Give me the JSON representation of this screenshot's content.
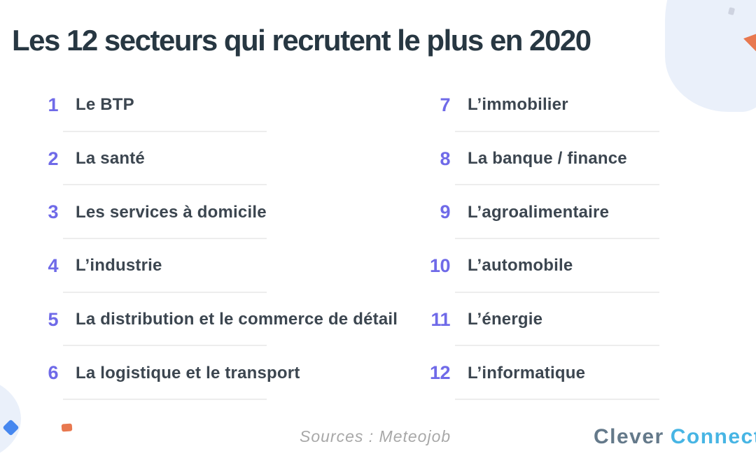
{
  "title": "Les 12 secteurs qui recrutent le plus en 2020",
  "columns": {
    "left": [
      {
        "num": "1",
        "label": "Le BTP"
      },
      {
        "num": "2",
        "label": "La santé"
      },
      {
        "num": "3",
        "label": "Les services à domicile"
      },
      {
        "num": "4",
        "label": "L’industrie"
      },
      {
        "num": "5",
        "label": "La distribution et le commerce de détail"
      },
      {
        "num": "6",
        "label": "La logistique et le transport"
      }
    ],
    "right": [
      {
        "num": "7",
        "label": "L’immobilier"
      },
      {
        "num": "8",
        "label": "La banque / finance"
      },
      {
        "num": "9",
        "label": "L’agroalimentaire"
      },
      {
        "num": "10",
        "label": "L’automobile"
      },
      {
        "num": "11",
        "label": "L’énergie"
      },
      {
        "num": "12",
        "label": "L’informatique"
      }
    ]
  },
  "footer": {
    "sources": "Sources : Meteojob",
    "logo_part1": "Clever",
    "logo_part2": "Connect"
  },
  "colors": {
    "title": "#273742",
    "number": "#6F6AE8",
    "label": "#3C4650",
    "divider": "#EDEDED",
    "sources": "#A8A8A8",
    "logo_gray": "#64798A",
    "logo_blue": "#47B5E4",
    "blob": "#EAF0FA",
    "accent_blue": "#4687EF",
    "accent_orange": "#E8784F",
    "accent_gray": "#C9CEDB"
  }
}
